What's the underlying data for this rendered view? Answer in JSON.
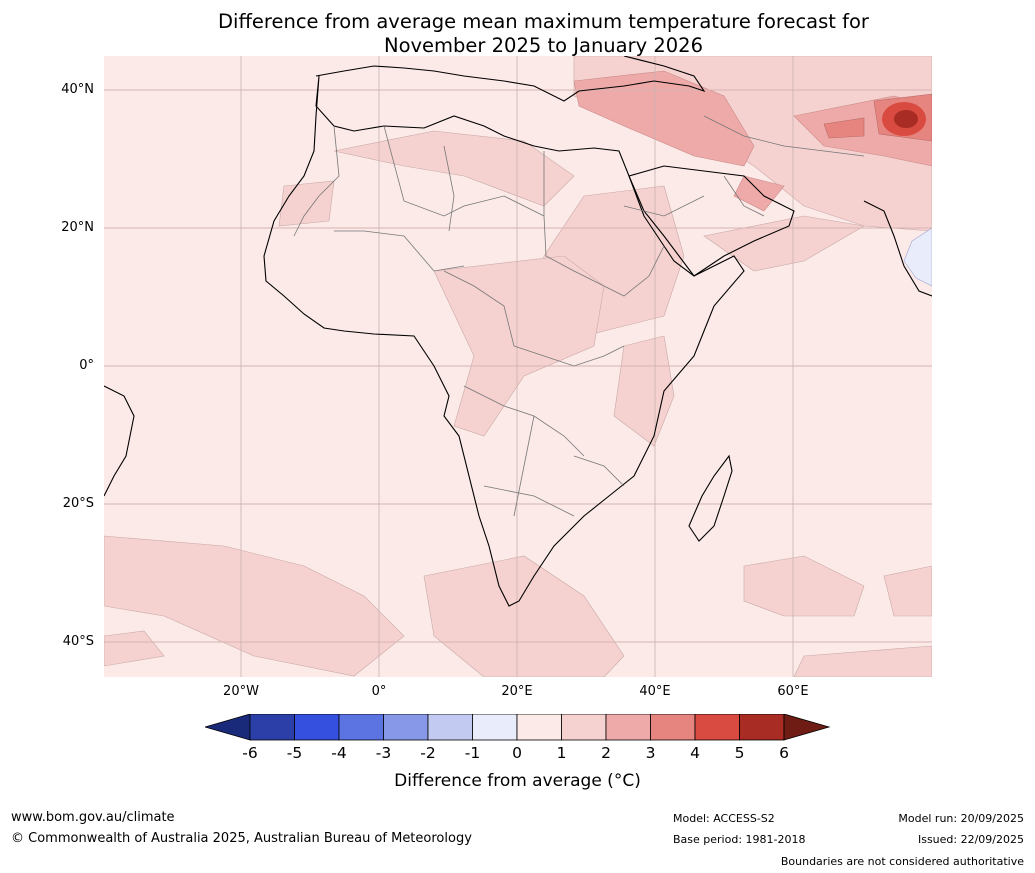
{
  "title_line1": "Difference from average mean maximum temperature forecast for",
  "title_line2": "November 2025 to January 2026",
  "lat_labels": [
    "40°N",
    "20°N",
    "0°",
    "20°S",
    "40°S"
  ],
  "lon_labels": [
    "20°W",
    "0°",
    "20°E",
    "40°E",
    "60°E"
  ],
  "colorbar": {
    "ticks": [
      "-6",
      "-5",
      "-4",
      "-3",
      "-2",
      "-1",
      "0",
      "1",
      "2",
      "3",
      "4",
      "5",
      "6"
    ],
    "colors": [
      "#1a2a7a",
      "#2c3fa8",
      "#3550de",
      "#5b74e2",
      "#8798e8",
      "#c2caf1",
      "#e9ecfa",
      "#fbeae8",
      "#f5d2d0",
      "#eeaaa8",
      "#e68480",
      "#d94a40",
      "#a82c24",
      "#6e1c14"
    ],
    "label": "Difference from average (",
    "label_unit": "°C",
    "label_end": ")"
  },
  "footer": {
    "website": "www.bom.gov.au/climate",
    "copyright": "© Commonwealth of Australia 2025, Australian Bureau of Meteorology",
    "model": "Model: ACCESS-S2",
    "base_period": "Base period: 1981-2018",
    "model_run": "Model run: 20/09/2025",
    "issued": "Issued: 22/09/2025",
    "disclaimer": "Boundaries are not considered authoritative"
  }
}
